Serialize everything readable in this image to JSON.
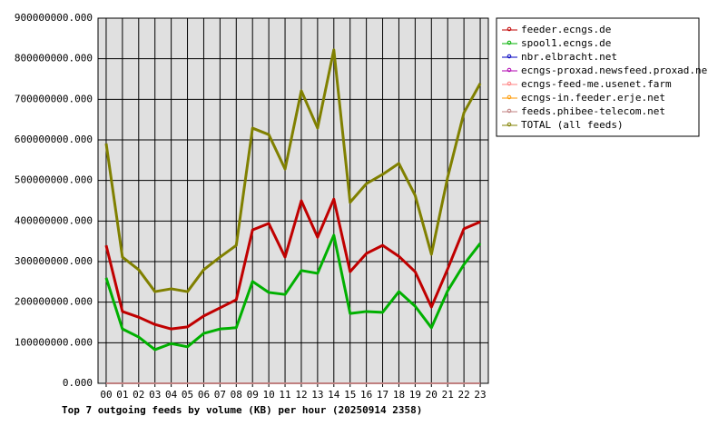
{
  "chart_data": {
    "type": "line",
    "title": "Top 7 outgoing feeds by volume (KB) per hour (20250914 2358)",
    "categories": [
      "00",
      "01",
      "02",
      "03",
      "04",
      "05",
      "06",
      "07",
      "08",
      "09",
      "10",
      "11",
      "12",
      "13",
      "14",
      "15",
      "16",
      "17",
      "18",
      "19",
      "20",
      "21",
      "22",
      "23"
    ],
    "ylim": [
      0,
      900000000
    ],
    "yticks": [
      {
        "value": 0,
        "label": "0.000"
      },
      {
        "value": 100000000,
        "label": "100000000.000"
      },
      {
        "value": 200000000,
        "label": "200000000.000"
      },
      {
        "value": 300000000,
        "label": "300000000.000"
      },
      {
        "value": 400000000,
        "label": "400000000.000"
      },
      {
        "value": 500000000,
        "label": "500000000.000"
      },
      {
        "value": 600000000,
        "label": "600000000.000"
      },
      {
        "value": 700000000,
        "label": "700000000.000"
      },
      {
        "value": 800000000,
        "label": "800000000.000"
      },
      {
        "value": 900000000,
        "label": "900000000.000"
      }
    ],
    "grid": true,
    "legend": "right",
    "series": [
      {
        "name": "feeder.ecngs.de",
        "color": "#c00000",
        "values": [
          340000000,
          177000000,
          163000000,
          145000000,
          134000000,
          139000000,
          166000000,
          186000000,
          206000000,
          378000000,
          394000000,
          311000000,
          450000000,
          360000000,
          454000000,
          275000000,
          320000000,
          340000000,
          313000000,
          275000000,
          188000000,
          282000000,
          381000000,
          398000000
        ]
      },
      {
        "name": "spool1.ecngs.de",
        "color": "#00b000",
        "values": [
          260000000,
          134000000,
          114000000,
          83000000,
          98000000,
          90000000,
          123000000,
          134000000,
          137000000,
          251000000,
          224000000,
          219000000,
          278000000,
          271000000,
          365000000,
          172000000,
          177000000,
          175000000,
          226000000,
          190000000,
          137000000,
          228000000,
          293000000,
          345000000
        ]
      },
      {
        "name": "nbr.elbracht.net",
        "color": "#0000c0",
        "values": [
          0,
          0,
          0,
          0,
          0,
          0,
          0,
          0,
          0,
          0,
          0,
          0,
          0,
          0,
          0,
          0,
          0,
          0,
          0,
          0,
          0,
          0,
          0,
          0
        ]
      },
      {
        "name": "ecngs-proxad.newsfeed.proxad.net",
        "color": "#b000b0",
        "values": [
          0,
          0,
          0,
          0,
          0,
          0,
          0,
          0,
          0,
          0,
          0,
          0,
          0,
          0,
          0,
          0,
          0,
          0,
          0,
          0,
          0,
          0,
          0,
          0
        ]
      },
      {
        "name": "ecngs-feed-me.usenet.farm",
        "color": "#ff8080",
        "values": [
          0,
          0,
          0,
          0,
          0,
          0,
          0,
          0,
          0,
          0,
          0,
          0,
          0,
          0,
          0,
          0,
          0,
          0,
          0,
          0,
          0,
          0,
          0,
          0
        ]
      },
      {
        "name": "ecngs-in.feeder.erje.net",
        "color": "#ff9900",
        "values": [
          0,
          0,
          0,
          0,
          0,
          0,
          0,
          0,
          0,
          0,
          0,
          0,
          0,
          0,
          0,
          0,
          0,
          0,
          0,
          0,
          0,
          0,
          0,
          0
        ]
      },
      {
        "name": "feeds.phibee-telecom.net",
        "color": "#c08080",
        "values": [
          0,
          0,
          0,
          0,
          0,
          0,
          0,
          0,
          0,
          0,
          0,
          0,
          0,
          0,
          0,
          0,
          0,
          0,
          0,
          0,
          0,
          0,
          0,
          0
        ]
      },
      {
        "name": "TOTAL (all feeds)",
        "color": "#808000",
        "values": [
          591000000,
          311000000,
          280000000,
          226000000,
          233000000,
          226000000,
          280000000,
          311000000,
          340000000,
          629000000,
          613000000,
          528000000,
          721000000,
          629000000,
          822000000,
          446000000,
          492000000,
          515000000,
          542000000,
          463000000,
          318000000,
          508000000,
          667000000,
          739000000
        ]
      }
    ]
  }
}
